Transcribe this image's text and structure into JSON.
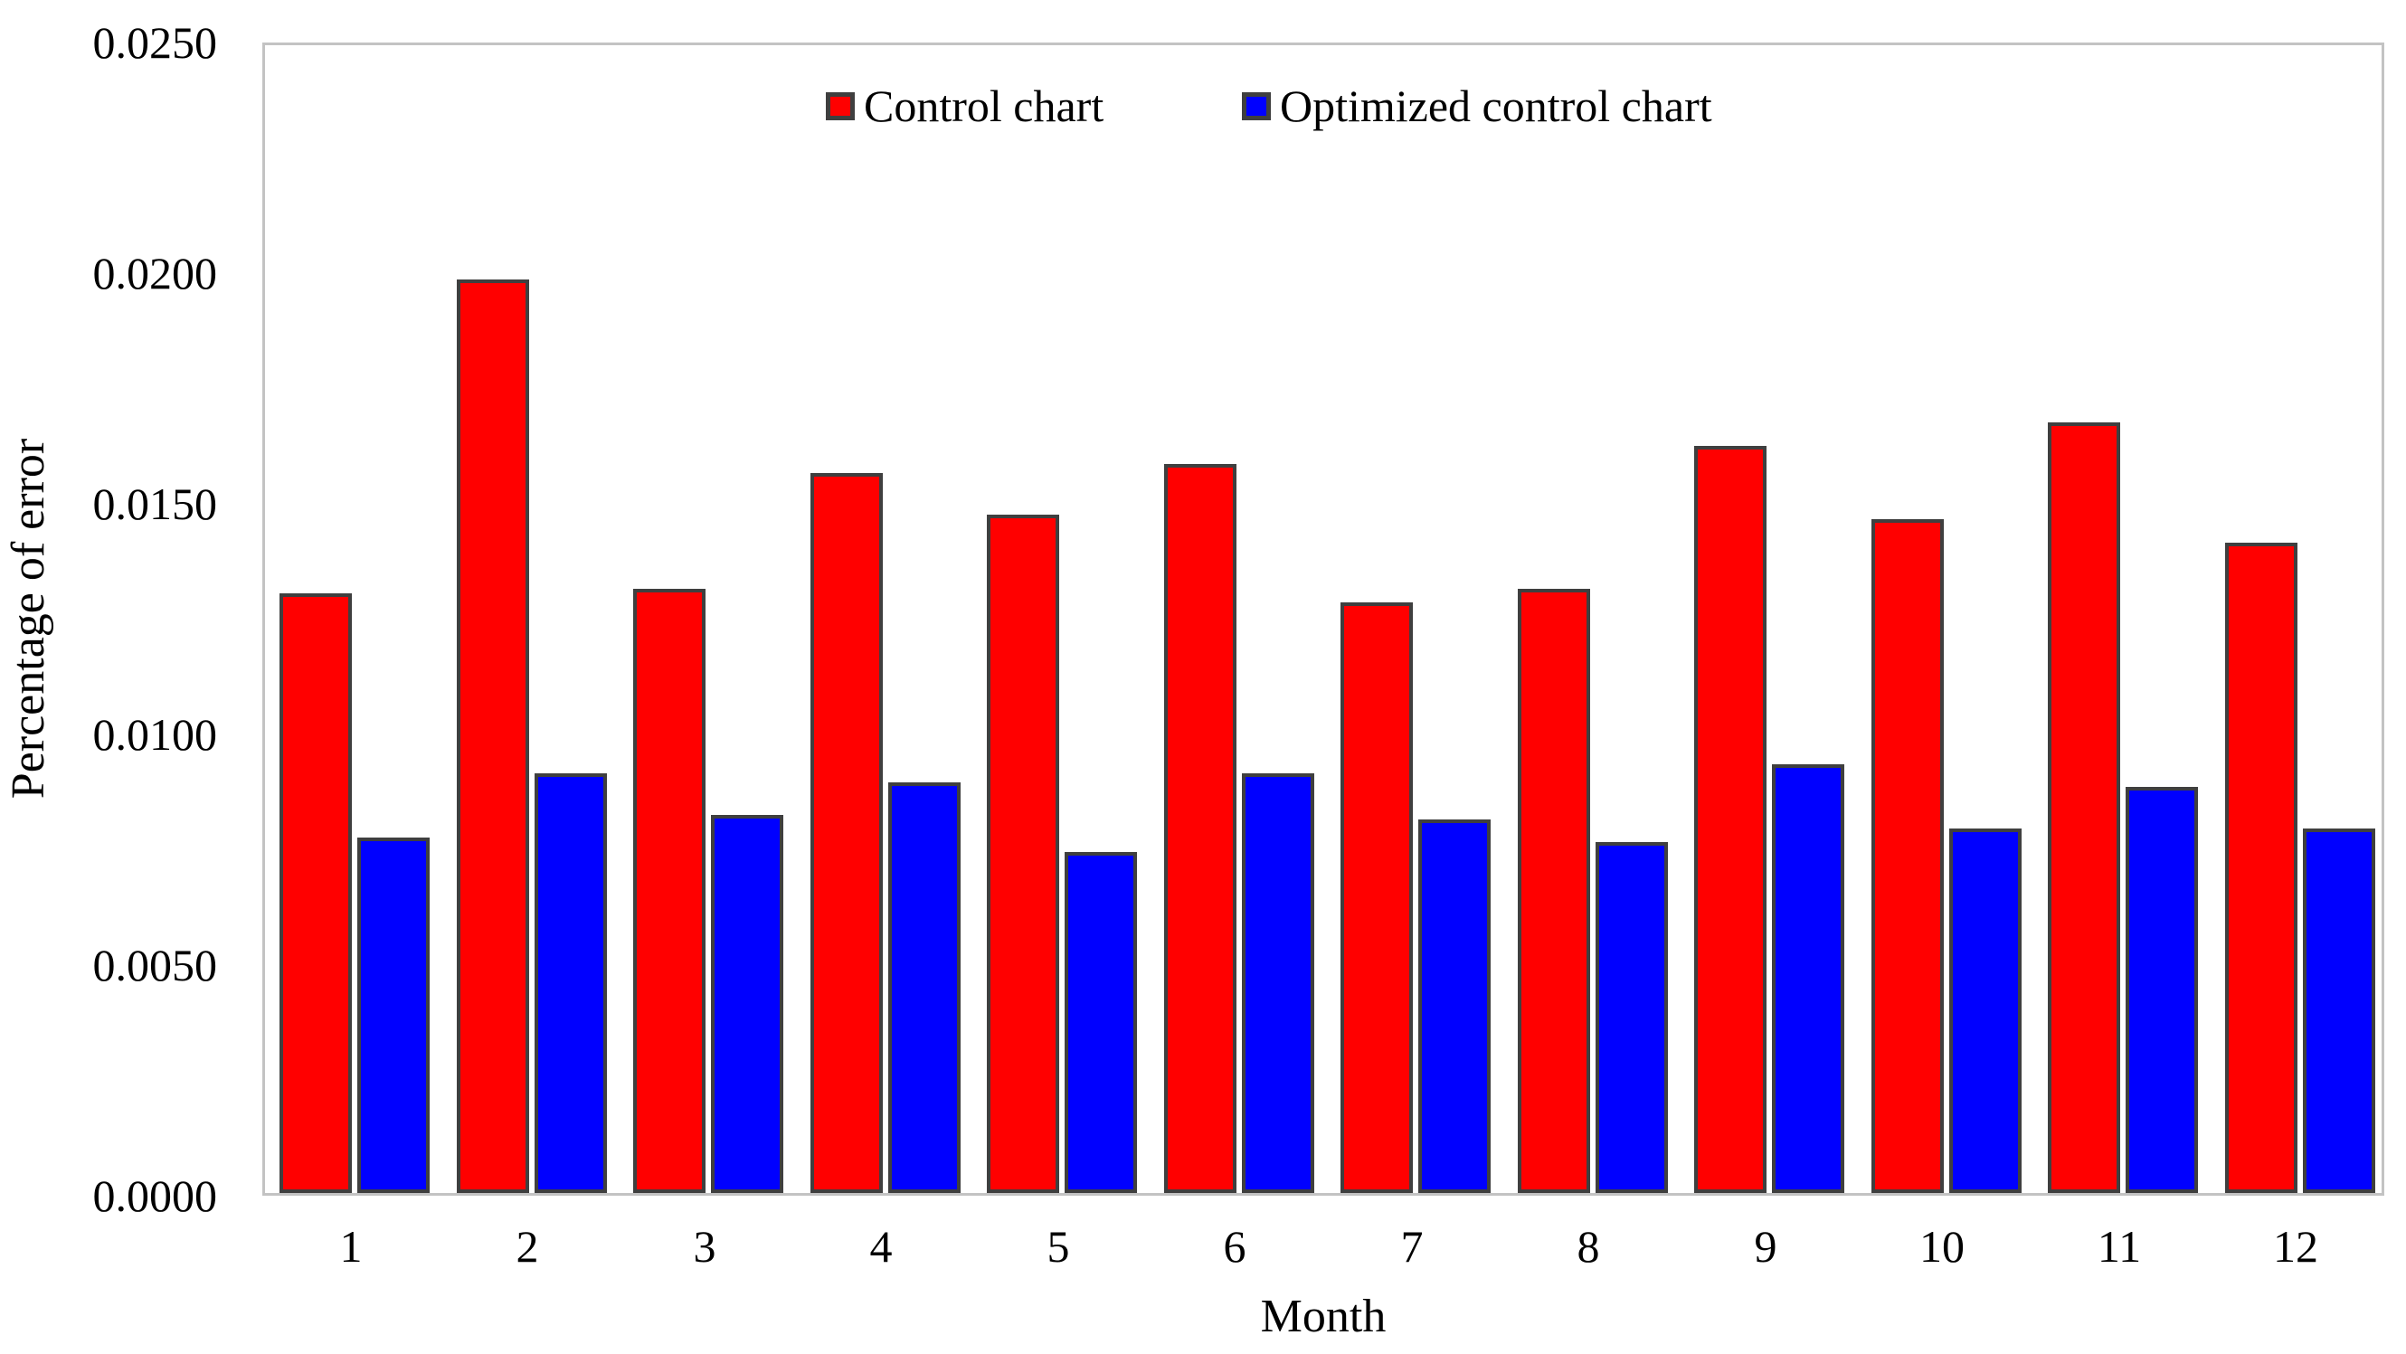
{
  "chart_data": {
    "type": "bar",
    "categories": [
      "1",
      "2",
      "3",
      "4",
      "5",
      "6",
      "7",
      "8",
      "9",
      "10",
      "11",
      "12"
    ],
    "series": [
      {
        "name": "Control chart",
        "color": "#ff0000",
        "values": [
          0.013,
          0.0198,
          0.0131,
          0.0156,
          0.0147,
          0.0158,
          0.0128,
          0.0131,
          0.0162,
          0.0146,
          0.0167,
          0.0141
        ]
      },
      {
        "name": "Optimized control chart",
        "color": "#0000ff",
        "values": [
          0.0077,
          0.0091,
          0.0082,
          0.0089,
          0.0074,
          0.0091,
          0.0081,
          0.0076,
          0.0093,
          0.0079,
          0.0088,
          0.0079
        ]
      }
    ],
    "xlabel": "Month",
    "ylabel": "Percentage of error",
    "ylim": [
      0,
      0.025
    ],
    "ytick_step": 0.005,
    "ytick_labels": [
      "0.0000",
      "0.0050",
      "0.0100",
      "0.0150",
      "0.0200",
      "0.0250"
    ],
    "grid": false,
    "legend_position": "top-inside",
    "bar_border_color": "#3f3f3f",
    "plot_border_color": "#c3c3c3"
  }
}
